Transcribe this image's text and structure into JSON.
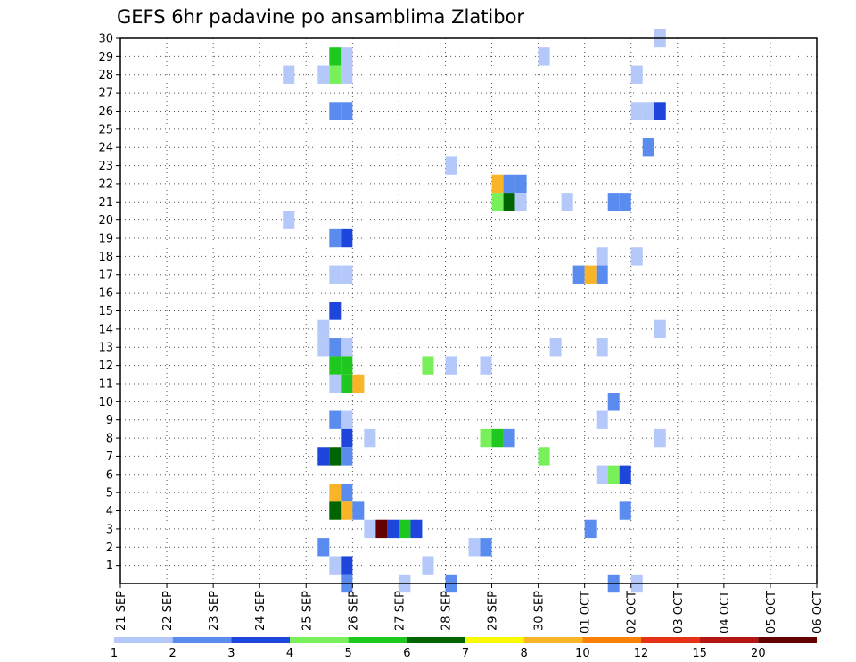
{
  "chart_data": {
    "type": "heatmap",
    "title": "GEFS 6hr padavine po ansamblima Zlatibor",
    "xlabel": "",
    "ylabel": "",
    "y_ticks": [
      1,
      2,
      3,
      4,
      5,
      6,
      7,
      8,
      9,
      10,
      11,
      12,
      13,
      14,
      15,
      16,
      17,
      18,
      19,
      20,
      21,
      22,
      23,
      24,
      25,
      26,
      27,
      28,
      29,
      30
    ],
    "x_tick_labels": [
      "21 SEP",
      "22 SEP",
      "23 SEP",
      "24 SEP",
      "25 SEP",
      "26 SEP",
      "27 SEP",
      "28 SEP",
      "29 SEP",
      "30 SEP",
      "01 OCT",
      "02 OCT",
      "03 OCT",
      "04 OCT",
      "05 OCT",
      "06 OCT"
    ],
    "grid": true,
    "colorbar": {
      "position": "bottom",
      "labels": [
        "1",
        "2",
        "3",
        "4",
        "5",
        "6",
        "7",
        "8",
        "10",
        "12",
        "15",
        "20"
      ],
      "colors": [
        "#b4c8fa",
        "#5a8cf0",
        "#1e46dc",
        "#78f05a",
        "#1ec81e",
        "#006400",
        "#fafa00",
        "#fab428",
        "#fa8200",
        "#e63214",
        "#b41414",
        "#640000"
      ]
    },
    "cell_units": "x = forecast step (6h, 0 = 21 SEP 00Z), y = ensemble member",
    "cells": [
      [
        46,
        30,
        1
      ],
      [
        36,
        29,
        1
      ],
      [
        44,
        28,
        1
      ],
      [
        18,
        29,
        5
      ],
      [
        18,
        28,
        4
      ],
      [
        19,
        29,
        1
      ],
      [
        19,
        28,
        1
      ],
      [
        14,
        28,
        1
      ],
      [
        17,
        28,
        1
      ],
      [
        18,
        26,
        2
      ],
      [
        19,
        26,
        2
      ],
      [
        44,
        26,
        1
      ],
      [
        45,
        26,
        1
      ],
      [
        46,
        26,
        3
      ],
      [
        45,
        24,
        2
      ],
      [
        33,
        22,
        2
      ],
      [
        34,
        22,
        2
      ],
      [
        32,
        22,
        9
      ],
      [
        33,
        21,
        6
      ],
      [
        32,
        21,
        4
      ],
      [
        34,
        21,
        1
      ],
      [
        28,
        23,
        1
      ],
      [
        38,
        21,
        1
      ],
      [
        42,
        21,
        2
      ],
      [
        43,
        21,
        2
      ],
      [
        14,
        20,
        1
      ],
      [
        18,
        19,
        2
      ],
      [
        19,
        19,
        3
      ],
      [
        41,
        18,
        1
      ],
      [
        44,
        18,
        1
      ],
      [
        39,
        17,
        2
      ],
      [
        40,
        17,
        9
      ],
      [
        41,
        17,
        2
      ],
      [
        18,
        17,
        1
      ],
      [
        19,
        17,
        1
      ],
      [
        18,
        15,
        3
      ],
      [
        17,
        14,
        1
      ],
      [
        46,
        14,
        1
      ],
      [
        17,
        13,
        1
      ],
      [
        18,
        13,
        2
      ],
      [
        19,
        13,
        1
      ],
      [
        37,
        13,
        1
      ],
      [
        41,
        13,
        1
      ],
      [
        18,
        12,
        5
      ],
      [
        19,
        12,
        5
      ],
      [
        26,
        12,
        4
      ],
      [
        28,
        12,
        1
      ],
      [
        31,
        12,
        1
      ],
      [
        18,
        11,
        1
      ],
      [
        19,
        11,
        5
      ],
      [
        20,
        11,
        9
      ],
      [
        42,
        10,
        2
      ],
      [
        18,
        9,
        2
      ],
      [
        19,
        9,
        1
      ],
      [
        41,
        9,
        1
      ],
      [
        19,
        8,
        3
      ],
      [
        21,
        8,
        1
      ],
      [
        31,
        8,
        4
      ],
      [
        32,
        8,
        5
      ],
      [
        33,
        8,
        2
      ],
      [
        46,
        8,
        1
      ],
      [
        17,
        7,
        3
      ],
      [
        18,
        7,
        6
      ],
      [
        19,
        7,
        2
      ],
      [
        36,
        7,
        4
      ],
      [
        41,
        6,
        1
      ],
      [
        42,
        6,
        4
      ],
      [
        43,
        6,
        3
      ],
      [
        18,
        5,
        9
      ],
      [
        19,
        5,
        2
      ],
      [
        18,
        4,
        6
      ],
      [
        19,
        4,
        9
      ],
      [
        20,
        4,
        2
      ],
      [
        43,
        4,
        2
      ],
      [
        21,
        3,
        1
      ],
      [
        22,
        3,
        20
      ],
      [
        23,
        3,
        3
      ],
      [
        24,
        3,
        5
      ],
      [
        25,
        3,
        3
      ],
      [
        40,
        3,
        2
      ],
      [
        17,
        2,
        2
      ],
      [
        30,
        2,
        1
      ],
      [
        31,
        2,
        2
      ],
      [
        18,
        1,
        1
      ],
      [
        19,
        1,
        3
      ],
      [
        26,
        1,
        1
      ],
      [
        19,
        0,
        2
      ],
      [
        24,
        0,
        1
      ],
      [
        28,
        0,
        2
      ],
      [
        42,
        0,
        2
      ],
      [
        44,
        0,
        1
      ]
    ]
  }
}
